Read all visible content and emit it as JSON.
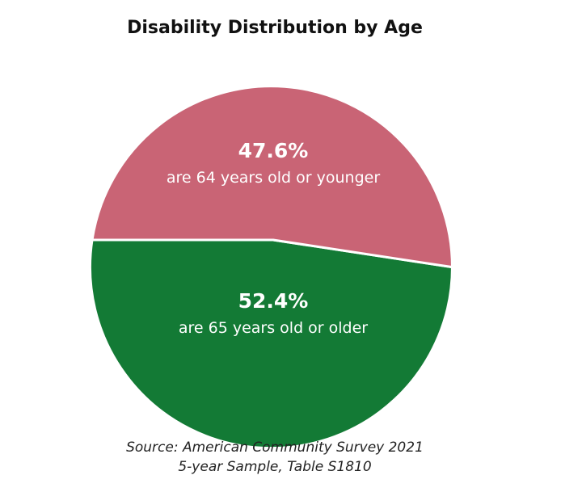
{
  "chart_data": {
    "type": "pie",
    "title": "Disability Distribution by Age",
    "slices": [
      {
        "percent_label": "47.6%",
        "label": "are 64 years old or younger",
        "value": 47.6,
        "color": "#c96475"
      },
      {
        "percent_label": "52.4%",
        "label": "are 65 years old or older",
        "value": 52.4,
        "color": "#137a35"
      }
    ],
    "source": [
      "Source: American Community Survey 2021",
      "5-year Sample, Table S1810"
    ]
  }
}
